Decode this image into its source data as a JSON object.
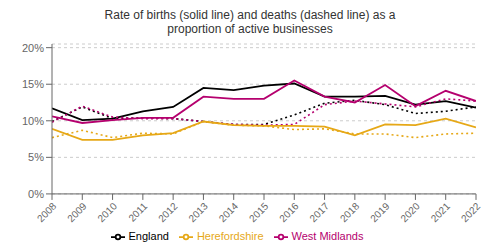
{
  "chart_data": {
    "type": "line",
    "title": "Rate of births (solid line) and deaths (dashed line) as a\nproportion of active businesses",
    "x": [
      2008,
      2009,
      2010,
      2011,
      2012,
      2013,
      2014,
      2015,
      2016,
      2017,
      2018,
      2019,
      2020,
      2021,
      2022
    ],
    "series": [
      {
        "name": "England",
        "color": "#000000",
        "line_style": "solid",
        "values": [
          0.117,
          0.101,
          0.103,
          0.113,
          0.119,
          0.145,
          0.142,
          0.148,
          0.151,
          0.133,
          0.133,
          0.134,
          0.122,
          0.127,
          0.118
        ]
      },
      {
        "color": "#000000",
        "line_style": "dotted",
        "values": [
          0.099,
          0.119,
          0.103,
          0.104,
          0.103,
          0.099,
          0.095,
          0.095,
          0.108,
          0.124,
          0.128,
          0.122,
          0.11,
          0.113,
          0.119
        ]
      },
      {
        "name": "West Midlands",
        "color": "#b5006e",
        "line_style": "solid",
        "values": [
          0.106,
          0.097,
          0.101,
          0.104,
          0.104,
          0.133,
          0.13,
          0.13,
          0.155,
          0.133,
          0.125,
          0.149,
          0.12,
          0.141,
          0.127
        ]
      },
      {
        "color": "#b5006e",
        "line_style": "dotted",
        "values": [
          0.098,
          0.12,
          0.105,
          0.103,
          0.103,
          0.099,
          0.095,
          0.094,
          0.095,
          0.122,
          0.127,
          0.123,
          0.119,
          0.13,
          0.127
        ]
      },
      {
        "name": "Herefordshire",
        "color": "#e6a817",
        "line_style": "solid",
        "values": [
          0.089,
          0.074,
          0.074,
          0.08,
          0.083,
          0.099,
          0.094,
          0.093,
          0.093,
          0.092,
          0.08,
          0.095,
          0.094,
          0.103,
          0.091
        ]
      },
      {
        "color": "#e6a817",
        "line_style": "dotted",
        "values": [
          0.077,
          0.087,
          0.077,
          0.083,
          0.082,
          0.099,
          0.094,
          0.093,
          0.088,
          0.089,
          0.082,
          0.082,
          0.077,
          0.082,
          0.083
        ]
      }
    ],
    "xlim": [
      2008,
      2022
    ],
    "xticks": [
      2008,
      2009,
      2010,
      2011,
      2012,
      2013,
      2014,
      2015,
      2016,
      2017,
      2018,
      2019,
      2020,
      2021,
      2022
    ],
    "ylim": [
      0,
      0.205
    ],
    "yticks": [
      {
        "value": 0,
        "label": "0%"
      },
      {
        "value": 0.05,
        "label": "5%"
      },
      {
        "value": 0.1,
        "label": "10%"
      },
      {
        "value": 0.15,
        "label": "15%"
      },
      {
        "value": 0.2,
        "label": "20%"
      }
    ],
    "grid": true,
    "legend": "bottom"
  }
}
